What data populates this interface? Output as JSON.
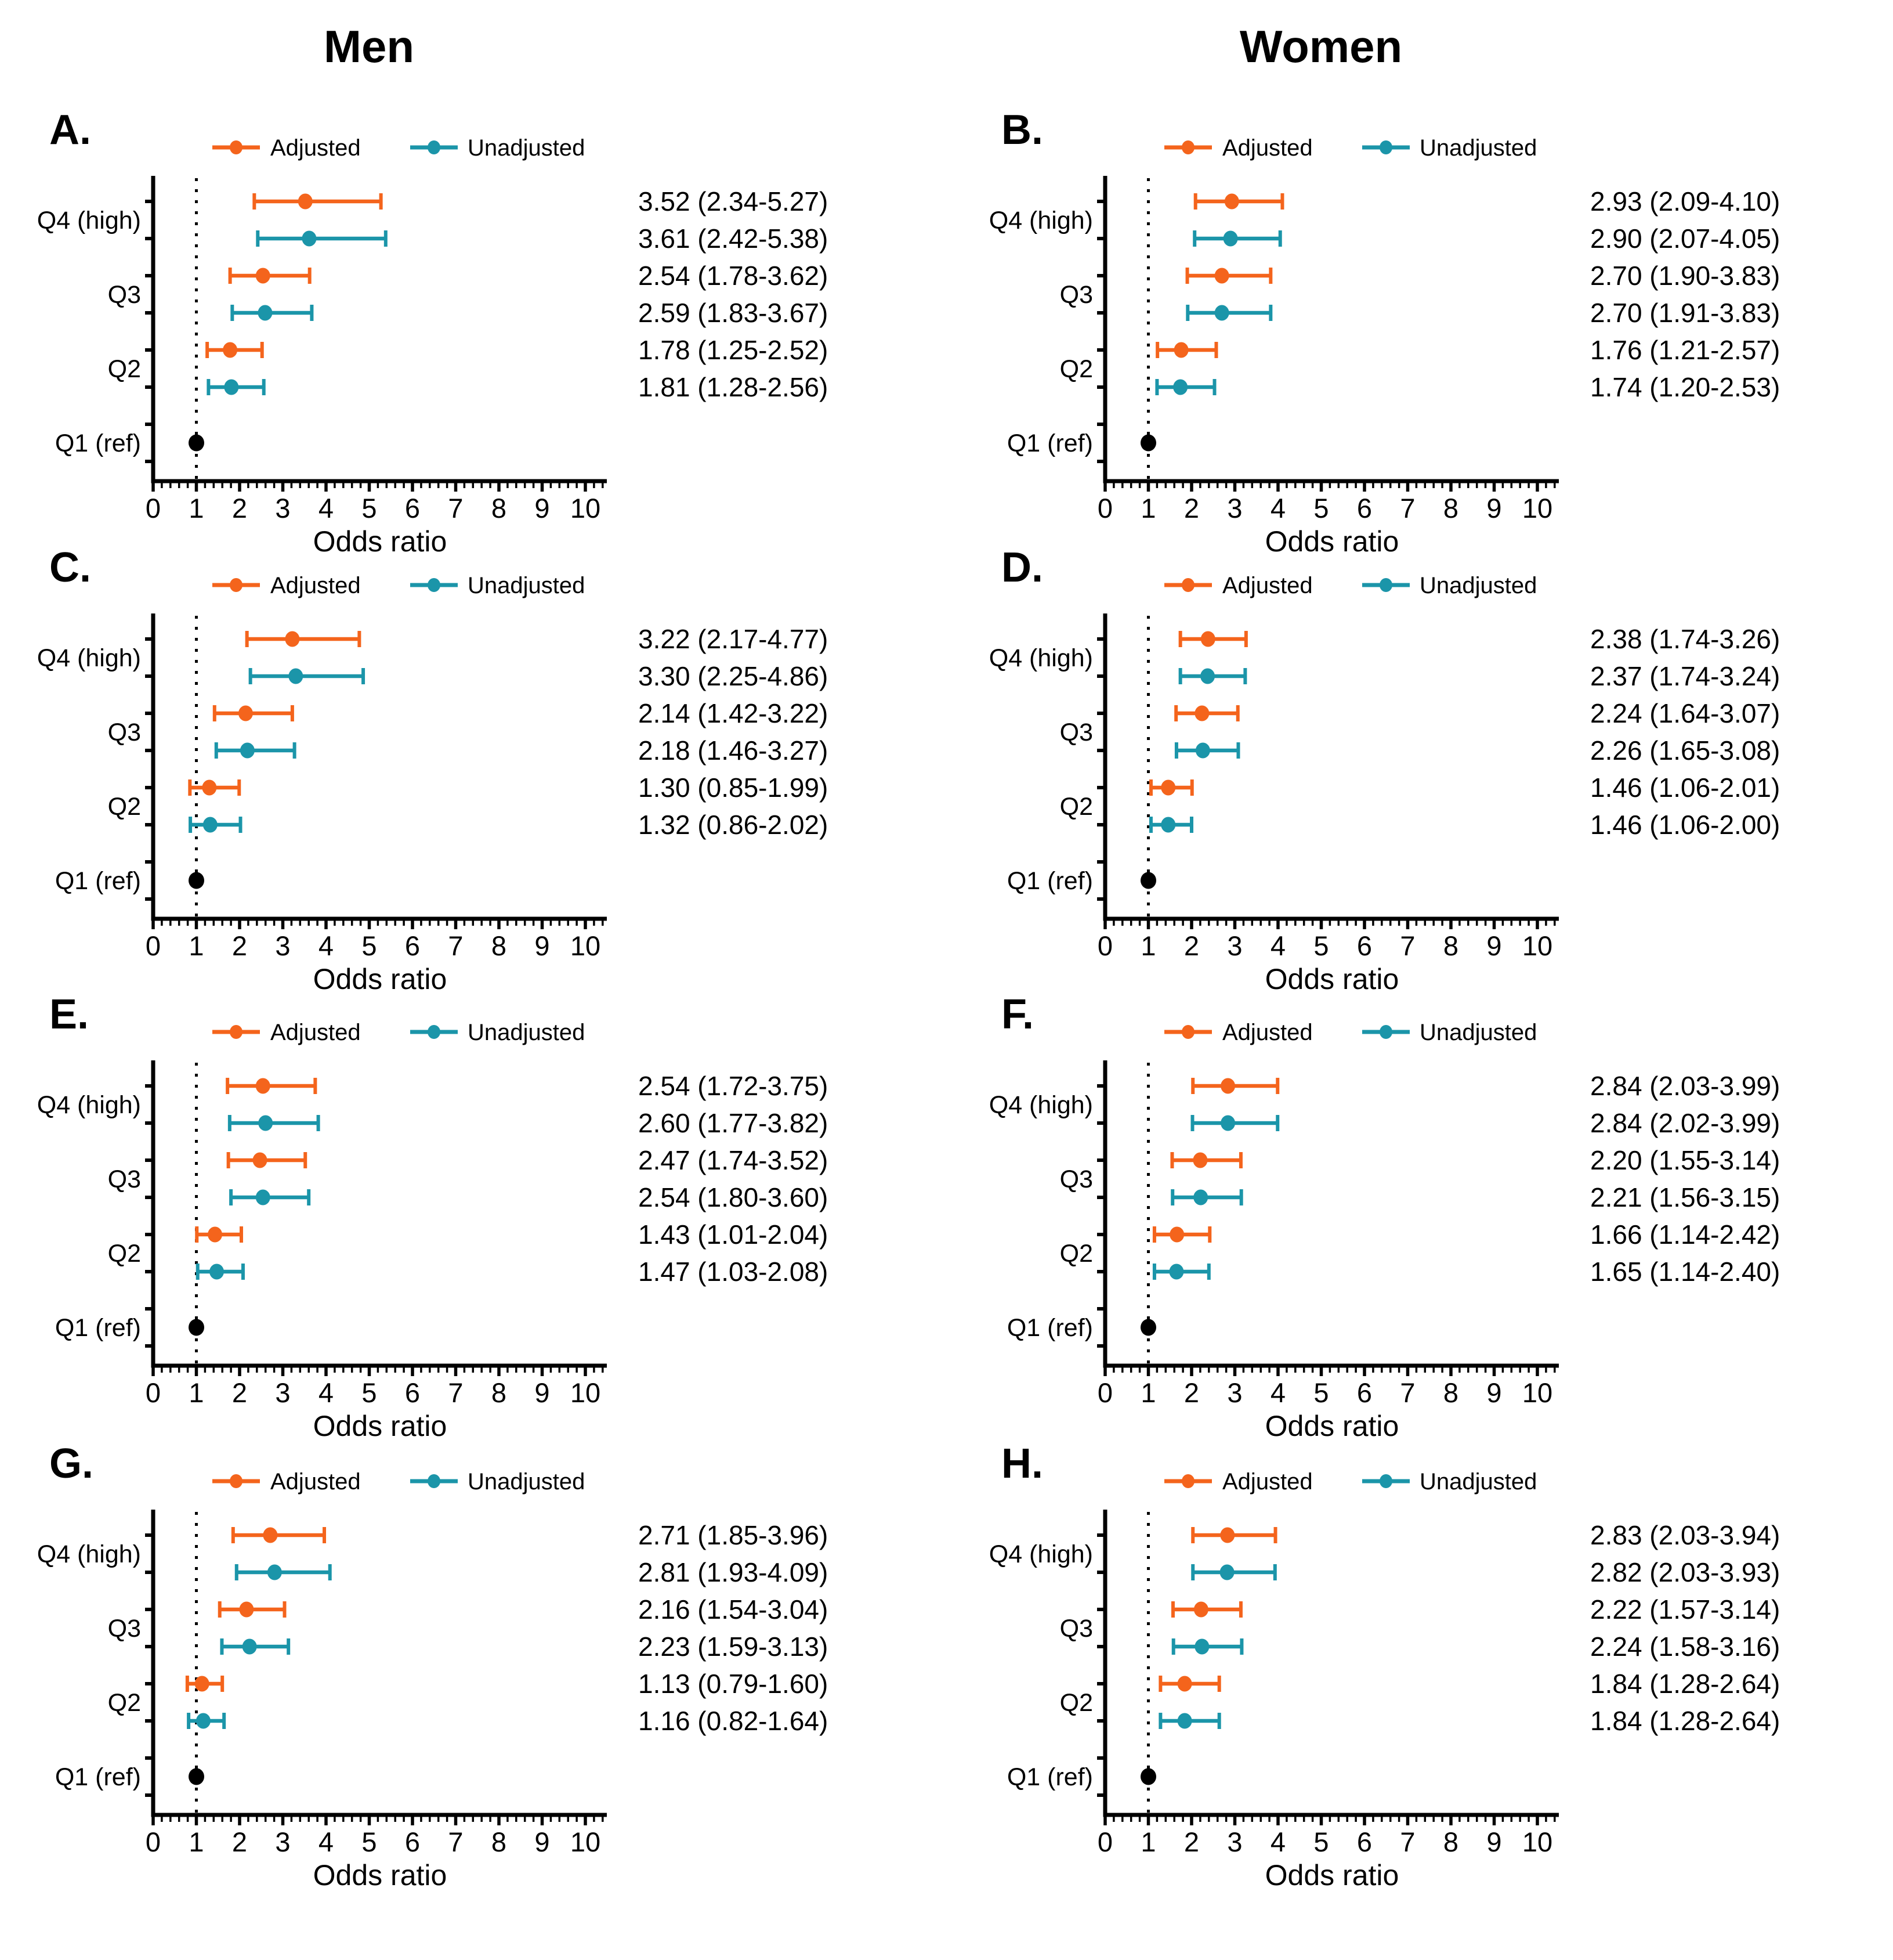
{
  "figure": {
    "column_titles": [
      "Men",
      "Women"
    ]
  },
  "chart_data": {
    "type": "scatter",
    "subtype": "forest-plot",
    "title": "",
    "xlabel": "Odds ratio",
    "ylabel": "",
    "xlim": [
      0,
      10.5
    ],
    "x_ticks": [
      0,
      1,
      2,
      3,
      4,
      5,
      6,
      7,
      8,
      9,
      10
    ],
    "minor_tick_step": 0.2,
    "reference_line_x": 1,
    "grid": false,
    "categories": [
      "Q4 (high)",
      "Q3",
      "Q2",
      "Q1 (ref)"
    ],
    "legend": {
      "position": "top",
      "entries": [
        {
          "label": "Adjusted",
          "color": "#F4641C"
        },
        {
          "label": "Unadjusted",
          "color": "#1B95A9"
        }
      ]
    },
    "reference_marker_color": "#000000",
    "panels": [
      {
        "letter": "A.",
        "column": "Men",
        "rows": [
          {
            "category": "Q4 (high)",
            "series": "Adjusted",
            "or": 3.52,
            "lo": 2.34,
            "hi": 5.27,
            "label": "3.52 (2.34-5.27)"
          },
          {
            "category": "Q4 (high)",
            "series": "Unadjusted",
            "or": 3.61,
            "lo": 2.42,
            "hi": 5.38,
            "label": "3.61 (2.42-5.38)"
          },
          {
            "category": "Q3",
            "series": "Adjusted",
            "or": 2.54,
            "lo": 1.78,
            "hi": 3.62,
            "label": "2.54 (1.78-3.62)"
          },
          {
            "category": "Q3",
            "series": "Unadjusted",
            "or": 2.59,
            "lo": 1.83,
            "hi": 3.67,
            "label": "2.59 (1.83-3.67)"
          },
          {
            "category": "Q2",
            "series": "Adjusted",
            "or": 1.78,
            "lo": 1.25,
            "hi": 2.52,
            "label": "1.78 (1.25-2.52)"
          },
          {
            "category": "Q2",
            "series": "Unadjusted",
            "or": 1.81,
            "lo": 1.28,
            "hi": 2.56,
            "label": "1.81 (1.28-2.56)"
          }
        ],
        "reference": {
          "category": "Q1 (ref)",
          "or": 1.0
        }
      },
      {
        "letter": "B.",
        "column": "Women",
        "rows": [
          {
            "category": "Q4 (high)",
            "series": "Adjusted",
            "or": 2.93,
            "lo": 2.09,
            "hi": 4.1,
            "label": "2.93 (2.09-4.10)"
          },
          {
            "category": "Q4 (high)",
            "series": "Unadjusted",
            "or": 2.9,
            "lo": 2.07,
            "hi": 4.05,
            "label": "2.90 (2.07-4.05)"
          },
          {
            "category": "Q3",
            "series": "Adjusted",
            "or": 2.7,
            "lo": 1.9,
            "hi": 3.83,
            "label": "2.70 (1.90-3.83)"
          },
          {
            "category": "Q3",
            "series": "Unadjusted",
            "or": 2.7,
            "lo": 1.91,
            "hi": 3.83,
            "label": "2.70 (1.91-3.83)"
          },
          {
            "category": "Q2",
            "series": "Adjusted",
            "or": 1.76,
            "lo": 1.21,
            "hi": 2.57,
            "label": "1.76 (1.21-2.57)"
          },
          {
            "category": "Q2",
            "series": "Unadjusted",
            "or": 1.74,
            "lo": 1.2,
            "hi": 2.53,
            "label": "1.74 (1.20-2.53)"
          }
        ],
        "reference": {
          "category": "Q1 (ref)",
          "or": 1.0
        }
      },
      {
        "letter": "C.",
        "column": "Men",
        "rows": [
          {
            "category": "Q4 (high)",
            "series": "Adjusted",
            "or": 3.22,
            "lo": 2.17,
            "hi": 4.77,
            "label": "3.22 (2.17-4.77)"
          },
          {
            "category": "Q4 (high)",
            "series": "Unadjusted",
            "or": 3.3,
            "lo": 2.25,
            "hi": 4.86,
            "label": "3.30 (2.25-4.86)"
          },
          {
            "category": "Q3",
            "series": "Adjusted",
            "or": 2.14,
            "lo": 1.42,
            "hi": 3.22,
            "label": "2.14 (1.42-3.22)"
          },
          {
            "category": "Q3",
            "series": "Unadjusted",
            "or": 2.18,
            "lo": 1.46,
            "hi": 3.27,
            "label": "2.18 (1.46-3.27)"
          },
          {
            "category": "Q2",
            "series": "Adjusted",
            "or": 1.3,
            "lo": 0.85,
            "hi": 1.99,
            "label": "1.30 (0.85-1.99)"
          },
          {
            "category": "Q2",
            "series": "Unadjusted",
            "or": 1.32,
            "lo": 0.86,
            "hi": 2.02,
            "label": "1.32 (0.86-2.02)"
          }
        ],
        "reference": {
          "category": "Q1 (ref)",
          "or": 1.0
        }
      },
      {
        "letter": "D.",
        "column": "Women",
        "rows": [
          {
            "category": "Q4 (high)",
            "series": "Adjusted",
            "or": 2.38,
            "lo": 1.74,
            "hi": 3.26,
            "label": "2.38 (1.74-3.26)"
          },
          {
            "category": "Q4 (high)",
            "series": "Unadjusted",
            "or": 2.37,
            "lo": 1.74,
            "hi": 3.24,
            "label": "2.37 (1.74-3.24)"
          },
          {
            "category": "Q3",
            "series": "Adjusted",
            "or": 2.24,
            "lo": 1.64,
            "hi": 3.07,
            "label": "2.24 (1.64-3.07)"
          },
          {
            "category": "Q3",
            "series": "Unadjusted",
            "or": 2.26,
            "lo": 1.65,
            "hi": 3.08,
            "label": "2.26 (1.65-3.08)"
          },
          {
            "category": "Q2",
            "series": "Adjusted",
            "or": 1.46,
            "lo": 1.06,
            "hi": 2.01,
            "label": "1.46 (1.06-2.01)"
          },
          {
            "category": "Q2",
            "series": "Unadjusted",
            "or": 1.46,
            "lo": 1.06,
            "hi": 2.0,
            "label": "1.46 (1.06-2.00)"
          }
        ],
        "reference": {
          "category": "Q1 (ref)",
          "or": 1.0
        }
      },
      {
        "letter": "E.",
        "column": "Men",
        "rows": [
          {
            "category": "Q4 (high)",
            "series": "Adjusted",
            "or": 2.54,
            "lo": 1.72,
            "hi": 3.75,
            "label": "2.54 (1.72-3.75)"
          },
          {
            "category": "Q4 (high)",
            "series": "Unadjusted",
            "or": 2.6,
            "lo": 1.77,
            "hi": 3.82,
            "label": "2.60 (1.77-3.82)"
          },
          {
            "category": "Q3",
            "series": "Adjusted",
            "or": 2.47,
            "lo": 1.74,
            "hi": 3.52,
            "label": "2.47 (1.74-3.52)"
          },
          {
            "category": "Q3",
            "series": "Unadjusted",
            "or": 2.54,
            "lo": 1.8,
            "hi": 3.6,
            "label": "2.54 (1.80-3.60)"
          },
          {
            "category": "Q2",
            "series": "Adjusted",
            "or": 1.43,
            "lo": 1.01,
            "hi": 2.04,
            "label": "1.43 (1.01-2.04)"
          },
          {
            "category": "Q2",
            "series": "Unadjusted",
            "or": 1.47,
            "lo": 1.03,
            "hi": 2.08,
            "label": "1.47 (1.03-2.08)"
          }
        ],
        "reference": {
          "category": "Q1 (ref)",
          "or": 1.0
        }
      },
      {
        "letter": "F.",
        "column": "Women",
        "rows": [
          {
            "category": "Q4 (high)",
            "series": "Adjusted",
            "or": 2.84,
            "lo": 2.03,
            "hi": 3.99,
            "label": "2.84 (2.03-3.99)"
          },
          {
            "category": "Q4 (high)",
            "series": "Unadjusted",
            "or": 2.84,
            "lo": 2.02,
            "hi": 3.99,
            "label": "2.84 (2.02-3.99)"
          },
          {
            "category": "Q3",
            "series": "Adjusted",
            "or": 2.2,
            "lo": 1.55,
            "hi": 3.14,
            "label": "2.20 (1.55-3.14)"
          },
          {
            "category": "Q3",
            "series": "Unadjusted",
            "or": 2.21,
            "lo": 1.56,
            "hi": 3.15,
            "label": "2.21 (1.56-3.15)"
          },
          {
            "category": "Q2",
            "series": "Adjusted",
            "or": 1.66,
            "lo": 1.14,
            "hi": 2.42,
            "label": "1.66 (1.14-2.42)"
          },
          {
            "category": "Q2",
            "series": "Unadjusted",
            "or": 1.65,
            "lo": 1.14,
            "hi": 2.4,
            "label": "1.65 (1.14-2.40)"
          }
        ],
        "reference": {
          "category": "Q1 (ref)",
          "or": 1.0
        }
      },
      {
        "letter": "G.",
        "column": "Men",
        "rows": [
          {
            "category": "Q4 (high)",
            "series": "Adjusted",
            "or": 2.71,
            "lo": 1.85,
            "hi": 3.96,
            "label": "2.71 (1.85-3.96)"
          },
          {
            "category": "Q4 (high)",
            "series": "Unadjusted",
            "or": 2.81,
            "lo": 1.93,
            "hi": 4.09,
            "label": "2.81 (1.93-4.09)"
          },
          {
            "category": "Q3",
            "series": "Adjusted",
            "or": 2.16,
            "lo": 1.54,
            "hi": 3.04,
            "label": "2.16 (1.54-3.04)"
          },
          {
            "category": "Q3",
            "series": "Unadjusted",
            "or": 2.23,
            "lo": 1.59,
            "hi": 3.13,
            "label": "2.23 (1.59-3.13)"
          },
          {
            "category": "Q2",
            "series": "Adjusted",
            "or": 1.13,
            "lo": 0.79,
            "hi": 1.6,
            "label": "1.13 (0.79-1.60)"
          },
          {
            "category": "Q2",
            "series": "Unadjusted",
            "or": 1.16,
            "lo": 0.82,
            "hi": 1.64,
            "label": "1.16 (0.82-1.64)"
          }
        ],
        "reference": {
          "category": "Q1 (ref)",
          "or": 1.0
        }
      },
      {
        "letter": "H.",
        "column": "Women",
        "rows": [
          {
            "category": "Q4 (high)",
            "series": "Adjusted",
            "or": 2.83,
            "lo": 2.03,
            "hi": 3.94,
            "label": "2.83 (2.03-3.94)"
          },
          {
            "category": "Q4 (high)",
            "series": "Unadjusted",
            "or": 2.82,
            "lo": 2.03,
            "hi": 3.93,
            "label": "2.82 (2.03-3.93)"
          },
          {
            "category": "Q3",
            "series": "Adjusted",
            "or": 2.22,
            "lo": 1.57,
            "hi": 3.14,
            "label": "2.22 (1.57-3.14)"
          },
          {
            "category": "Q3",
            "series": "Unadjusted",
            "or": 2.24,
            "lo": 1.58,
            "hi": 3.16,
            "label": "2.24 (1.58-3.16)"
          },
          {
            "category": "Q2",
            "series": "Adjusted",
            "or": 1.84,
            "lo": 1.28,
            "hi": 2.64,
            "label": "1.84 (1.28-2.64)"
          },
          {
            "category": "Q2",
            "series": "Unadjusted",
            "or": 1.84,
            "lo": 1.28,
            "hi": 2.64,
            "label": "1.84 (1.28-2.64)"
          }
        ],
        "reference": {
          "category": "Q1 (ref)",
          "or": 1.0
        }
      }
    ]
  }
}
